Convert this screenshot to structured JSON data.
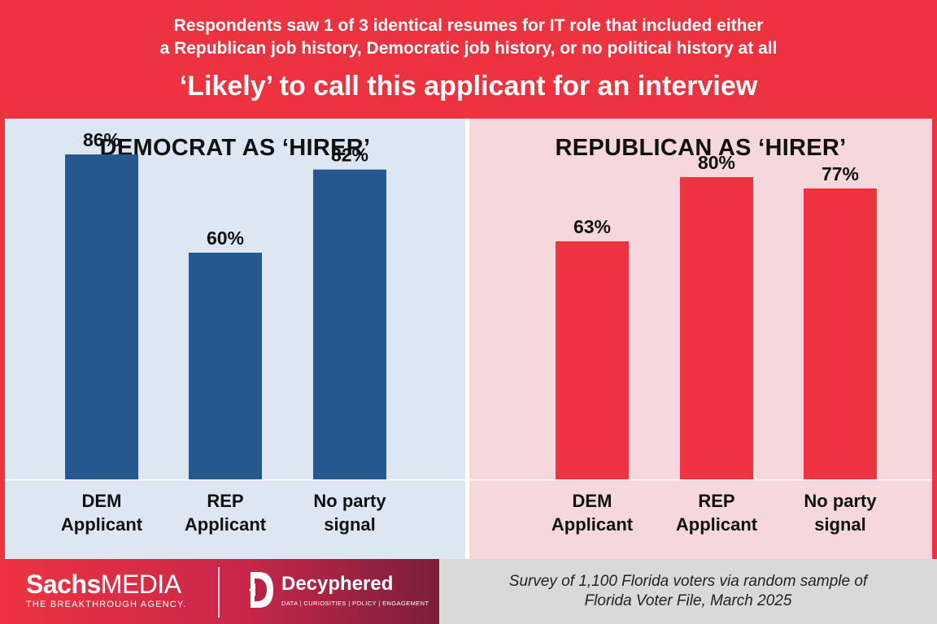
{
  "header": {
    "subtitle_line1": "Respondents saw 1 of 3 identical resumes for IT role that included either",
    "subtitle_line2": "a Republican job history, Democratic job history, or no political history at all",
    "title": "‘Likely’ to call this applicant for an interview"
  },
  "colors": {
    "header_bg": "#ee3340",
    "democrat_bar": "#27578f",
    "republican_bar": "#ef3340",
    "left_panel_bg": "#dde7f3",
    "right_panel_bg": "#f6d8dc"
  },
  "chart_data": [
    {
      "type": "bar",
      "title": "DEMOCRAT AS ‘HIRER’",
      "categories": [
        [
          "DEM",
          "Applicant"
        ],
        [
          "REP",
          "Applicant"
        ],
        [
          "No party",
          "signal"
        ]
      ],
      "values": [
        86,
        60,
        82
      ],
      "data_labels": [
        "86%",
        "60%",
        "82%"
      ],
      "ylim": [
        0,
        100
      ],
      "grid": false,
      "color": "#27578f"
    },
    {
      "type": "bar",
      "title": "REPUBLICAN AS ‘HIRER’",
      "categories": [
        [
          "DEM",
          "Applicant"
        ],
        [
          "REP",
          "Applicant"
        ],
        [
          "No party",
          "signal"
        ]
      ],
      "values": [
        63,
        80,
        77
      ],
      "data_labels": [
        "63%",
        "80%",
        "77%"
      ],
      "ylim": [
        0,
        100
      ],
      "grid": false,
      "color": "#ef3340"
    }
  ],
  "footer": {
    "sachs_bold": "Sachs",
    "sachs_light": "MEDIA",
    "sachs_tagline": "THE BREAKTHROUGH AGENCY.",
    "decyphered_name": "Decyphered",
    "decyphered_tagline": "DATA | CURIOSITIES | POLICY | ENGAGEMENT",
    "source_line1": "Survey of 1,100 Florida voters via random sample of",
    "source_line2": "Florida Voter File, March 2025"
  }
}
